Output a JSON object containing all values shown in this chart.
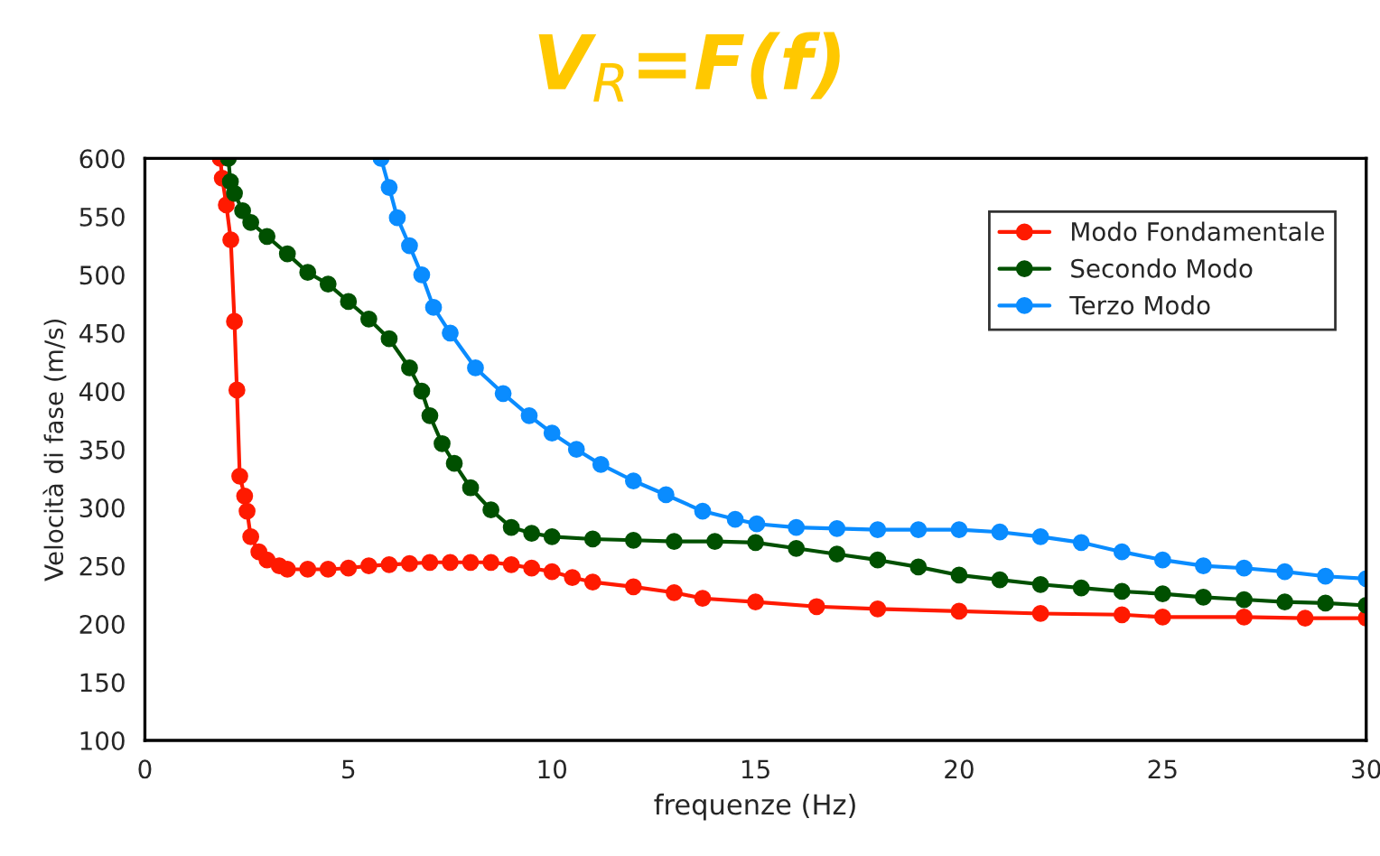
{
  "chart_data": {
    "type": "line",
    "title": "V$_{R}$=F(f)",
    "xlabel": "frequenze (Hz)",
    "ylabel": "Velocità di fase (m/s)",
    "xlim": [
      0,
      30
    ],
    "xticks": [
      0,
      5,
      10,
      15,
      20,
      25,
      30
    ],
    "ylim": [
      100,
      600
    ],
    "yticks": [
      100,
      150,
      200,
      250,
      300,
      350,
      400,
      450,
      500,
      550,
      600
    ],
    "grid": false,
    "legend": "top right",
    "marker": "circle",
    "line_style": "solid",
    "series": [
      {
        "name": "Modo Fondamentale",
        "color": "#ff1a00",
        "x": [
          1.85,
          1.9,
          2.0,
          2.11,
          2.2,
          2.26,
          2.33,
          2.45,
          2.51,
          2.6,
          2.8,
          3.0,
          3.3,
          3.5,
          4.0,
          4.5,
          5.0,
          5.5,
          6.0,
          6.5,
          7.0,
          7.5,
          8.0,
          8.5,
          9.0,
          9.5,
          10.0,
          10.5,
          11.0,
          12.0,
          13.0,
          13.7,
          15.0,
          16.5,
          18.0,
          20.0,
          22.0,
          24.0,
          25.0,
          27.0,
          28.5,
          30.0
        ],
        "values": [
          600,
          583,
          560,
          530,
          460,
          401,
          327,
          310,
          297,
          275,
          262,
          255,
          250,
          247,
          247,
          247,
          248,
          250,
          251,
          252,
          253,
          253,
          253,
          253,
          251,
          248,
          245,
          240,
          236,
          232,
          227,
          222,
          219,
          215,
          213,
          211,
          209,
          208,
          206,
          206,
          205,
          205
        ]
      },
      {
        "name": "Secondo Modo",
        "color": "#005000",
        "x": [
          2.05,
          2.1,
          2.2,
          2.4,
          2.6,
          3.0,
          3.5,
          4.0,
          4.5,
          5.0,
          5.5,
          6.0,
          6.5,
          6.8,
          7.0,
          7.3,
          7.6,
          8.0,
          8.5,
          9.0,
          9.5,
          10.0,
          11.0,
          12.0,
          13.0,
          14.0,
          15.0,
          16.0,
          17.0,
          18.0,
          19.0,
          20.0,
          21.0,
          22.0,
          23.0,
          24.0,
          25.0,
          26.0,
          27.0,
          28.0,
          29.0,
          30.0
        ],
        "values": [
          600,
          580,
          570,
          555,
          545,
          533,
          518,
          502,
          492,
          477,
          462,
          445,
          420,
          400,
          379,
          355,
          338,
          317,
          298,
          283,
          278,
          275,
          273,
          272,
          271,
          271,
          270,
          265,
          260,
          255,
          249,
          242,
          238,
          234,
          231,
          228,
          226,
          223,
          221,
          219,
          218,
          216
        ]
      },
      {
        "name": "Terzo Modo",
        "color": "#0a8cff",
        "x": [
          5.8,
          6.0,
          6.2,
          6.5,
          6.8,
          7.09,
          7.5,
          8.12,
          8.8,
          9.44,
          10.0,
          10.6,
          11.2,
          12.0,
          12.8,
          13.7,
          14.5,
          15.03,
          16.0,
          17.0,
          18.0,
          19.0,
          20.0,
          21.0,
          22.0,
          23.0,
          24.0,
          25.0,
          26.0,
          27.0,
          28.0,
          29.0,
          30.0
        ],
        "values": [
          600,
          575,
          549,
          525,
          500,
          472,
          450,
          420,
          398,
          379,
          364,
          350,
          337,
          323,
          311,
          297,
          290,
          286,
          283,
          282,
          281,
          281,
          281,
          279,
          275,
          270,
          262,
          255,
          250,
          248,
          245,
          241,
          239
        ]
      }
    ]
  }
}
